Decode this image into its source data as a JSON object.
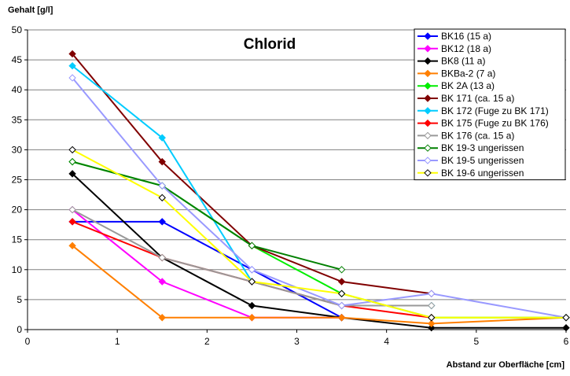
{
  "chart_data": {
    "type": "line",
    "title": "Chlorid",
    "y_label": "Gehalt [g/l]",
    "x_label": "Abstand zur Oberfläche [cm]",
    "xlim": [
      0,
      6
    ],
    "xticks": [
      0,
      1,
      2,
      3,
      4,
      5,
      6
    ],
    "ylim": [
      0,
      50
    ],
    "yticks": [
      0,
      5,
      10,
      15,
      20,
      25,
      30,
      35,
      40,
      45,
      50
    ],
    "grid": true,
    "legend": "top-right",
    "x": [
      0.5,
      1.5,
      2.5,
      3.5,
      4.5,
      6
    ],
    "series": [
      {
        "name": "BK16 (15 a)",
        "color": "#0000ff",
        "values": [
          18,
          18,
          10,
          2,
          null,
          null
        ]
      },
      {
        "name": "BK12 (18 a)",
        "color": "#ff00ff",
        "values": [
          20,
          8,
          2,
          2,
          null,
          null
        ]
      },
      {
        "name": "BK8 (11 a)",
        "color": "#000000",
        "values": [
          26,
          12,
          4,
          2,
          0.3,
          0.3
        ]
      },
      {
        "name": "BKBa-2 (7 a)",
        "color": "#ff7f00",
        "values": [
          14,
          2,
          2,
          2,
          1,
          2
        ]
      },
      {
        "name": "BK 2A (13 a)",
        "color": "#00ee00",
        "values": [
          28,
          24,
          14,
          6,
          2,
          2
        ]
      },
      {
        "name": "BK 171 (ca. 15 a)",
        "color": "#800000",
        "values": [
          46,
          28,
          14,
          8,
          6,
          null
        ]
      },
      {
        "name": "BK 172 (Fuge zu BK 171)",
        "color": "#00ccff",
        "values": [
          44,
          32,
          8,
          4,
          4,
          null
        ]
      },
      {
        "name": "BK 175 (Fuge zu BK 176)",
        "color": "#ff0000",
        "values": [
          18,
          12,
          8,
          4,
          2,
          null
        ]
      },
      {
        "name": "BK 176 (ca. 15 a)",
        "color": "#999999",
        "values": [
          20,
          12,
          8,
          4,
          4,
          null
        ],
        "hollow": true
      },
      {
        "name": "BK 19-3 ungerissen",
        "color": "#008000",
        "values": [
          28,
          24,
          14,
          10,
          null,
          null
        ],
        "hollow": true
      },
      {
        "name": "BK 19-5 ungerissen",
        "color": "#9999ff",
        "values": [
          42,
          24,
          10,
          4,
          6,
          2
        ],
        "hollow": true
      },
      {
        "name": "BK 19-6 ungerissen",
        "color": "#ffff00",
        "values": [
          30,
          22,
          8,
          6,
          2,
          2
        ],
        "hollow": true
      }
    ]
  }
}
